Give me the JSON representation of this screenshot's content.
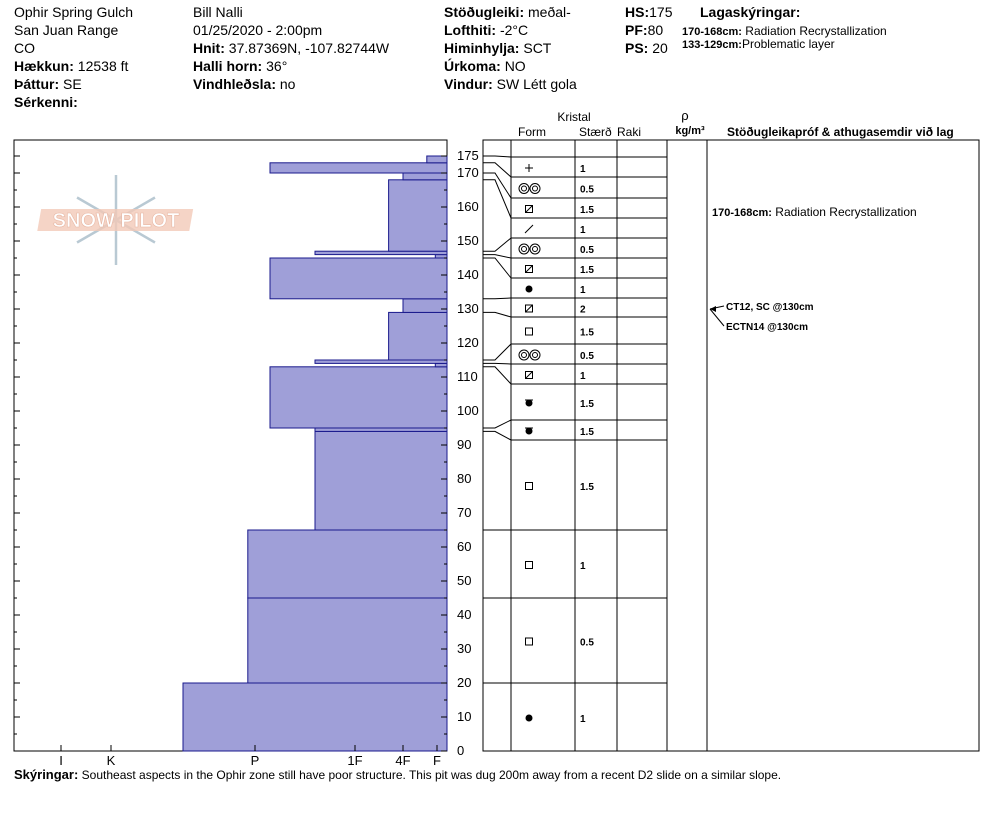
{
  "header": {
    "location": "Ophir Spring Gulch",
    "range": "San Juan Range",
    "state": "CO",
    "elevation_label": "Hækkun:",
    "elevation": "12538 ft",
    "aspect_label": "Þáttur:",
    "aspect": "SE",
    "features_label": "Sérkenni:",
    "observer": "Bill Nalli",
    "datetime": "01/25/2020 - 2:00pm",
    "coords_label": "Hnit:",
    "coords": "37.87369N, -107.82744W",
    "slope_label": "Halli horn:",
    "slope": "36°",
    "wind_loading_label": "Vindhleðsla:",
    "wind_loading": "no",
    "stability_label": "Stöðugleiki:",
    "stability": "meðal-",
    "air_temp_label": "Lofthiti:",
    "air_temp": "-2°C",
    "sky_label": "Himinhylja:",
    "sky": "SCT",
    "precip_label": "Úrkoma:",
    "precip": "NO",
    "wind_label": "Vindur:",
    "wind": "SW Létt gola",
    "hs_label": "HS:",
    "hs": "175",
    "pf_label": "PF:",
    "pf": "80",
    "ps_label": "PS:",
    "ps": "20",
    "layers_title": "Lagaskýringar:",
    "layer_notes": [
      {
        "range": "170-168cm:",
        "text": "Radiation Recrystallization"
      },
      {
        "range": "133-129cm:",
        "text": "Problematic layer"
      }
    ]
  },
  "logo_text": "SNOW PILOT",
  "comments_label": "Skýringar:",
  "comments": "Southeast aspects in the Ophir zone still have poor structure. This pit was dug 200m away from a recent D2 slide on a similar slope.",
  "chart_data": {
    "type": "snow_profile",
    "depth_range": [
      0,
      175
    ],
    "depth_ticks": [
      0,
      10,
      20,
      30,
      40,
      50,
      60,
      70,
      80,
      90,
      100,
      110,
      120,
      130,
      140,
      150,
      160,
      170,
      175
    ],
    "hardness_labels": [
      "I",
      "K",
      "P",
      "1F",
      "4F",
      "F"
    ],
    "hardness_scale": {
      "F": 0,
      "4F": 1,
      "1F": 2,
      "P": 3,
      "K": 4,
      "I": 5
    },
    "hardness_layers": [
      {
        "bottom": 0,
        "top": 20,
        "hardness": 3.5
      },
      {
        "bottom": 20,
        "top": 45,
        "hardness": 3.05
      },
      {
        "bottom": 45,
        "top": 65,
        "hardness": 3.05
      },
      {
        "bottom": 65,
        "top": 94,
        "hardness": 2.4
      },
      {
        "bottom": 94,
        "top": 95,
        "hardness": 2.4
      },
      {
        "bottom": 95,
        "top": 113,
        "hardness": 2.85
      },
      {
        "bottom": 113,
        "top": 114,
        "hardness": 0.05
      },
      {
        "bottom": 114,
        "top": 115,
        "hardness": 2.4
      },
      {
        "bottom": 115,
        "top": 129,
        "hardness": 1.3
      },
      {
        "bottom": 129,
        "top": 133,
        "hardness": 1.0
      },
      {
        "bottom": 133,
        "top": 145,
        "hardness": 2.85
      },
      {
        "bottom": 145,
        "top": 146,
        "hardness": 0.05
      },
      {
        "bottom": 146,
        "top": 147,
        "hardness": 2.4
      },
      {
        "bottom": 147,
        "top": 168,
        "hardness": 1.3
      },
      {
        "bottom": 168,
        "top": 170,
        "hardness": 1.0
      },
      {
        "bottom": 170,
        "top": 173,
        "hardness": 2.85
      },
      {
        "bottom": 173,
        "top": 175,
        "hardness": 0.3
      }
    ],
    "column_headers": {
      "crystal": "Kristal",
      "form": "Form",
      "size": "Stærð",
      "moisture": "Raki",
      "rho": "ρ",
      "density_unit": "kg/m³",
      "tests": "Stöðugleikapróf & athugasemdir við lag"
    },
    "crystal_rows": [
      {
        "form": "PP",
        "size": "1",
        "depth": 175
      },
      {
        "form": "SH",
        "size": "0.5",
        "depth": 173
      },
      {
        "form": "FC",
        "size": "1.5",
        "depth": 170
      },
      {
        "form": "DF",
        "size": "1",
        "depth": 168
      },
      {
        "form": "SH",
        "size": "0.5",
        "depth": 147
      },
      {
        "form": "FC",
        "size": "1.5",
        "depth": 146
      },
      {
        "form": "MF",
        "size": "1",
        "depth": 145
      },
      {
        "form": "FC",
        "size": "2",
        "depth": 133
      },
      {
        "form": "RG",
        "size": "1.5",
        "depth": 129
      },
      {
        "form": "SH",
        "size": "0.5",
        "depth": 115
      },
      {
        "form": "FC",
        "size": "1",
        "depth": 114
      },
      {
        "form": "MFcr",
        "size": "1.5",
        "depth": 113
      },
      {
        "form": "MFcr",
        "size": "1.5",
        "depth": 95
      },
      {
        "form": "RG",
        "size": "1.5",
        "depth": 94
      },
      {
        "form": "RG",
        "size": "1",
        "depth": 65
      },
      {
        "form": "RG",
        "size": "0.5",
        "depth": 45
      },
      {
        "form": "MF",
        "size": "1",
        "depth": 20
      }
    ],
    "layer_comments": [
      {
        "range": "170-168cm:",
        "text": "Radiation Recrystallization",
        "depth": 169
      }
    ],
    "stability_tests": [
      {
        "text": "CT12, SC @130cm",
        "depth": 130
      },
      {
        "text": "ECTN14 @130cm",
        "depth": 130
      }
    ]
  }
}
